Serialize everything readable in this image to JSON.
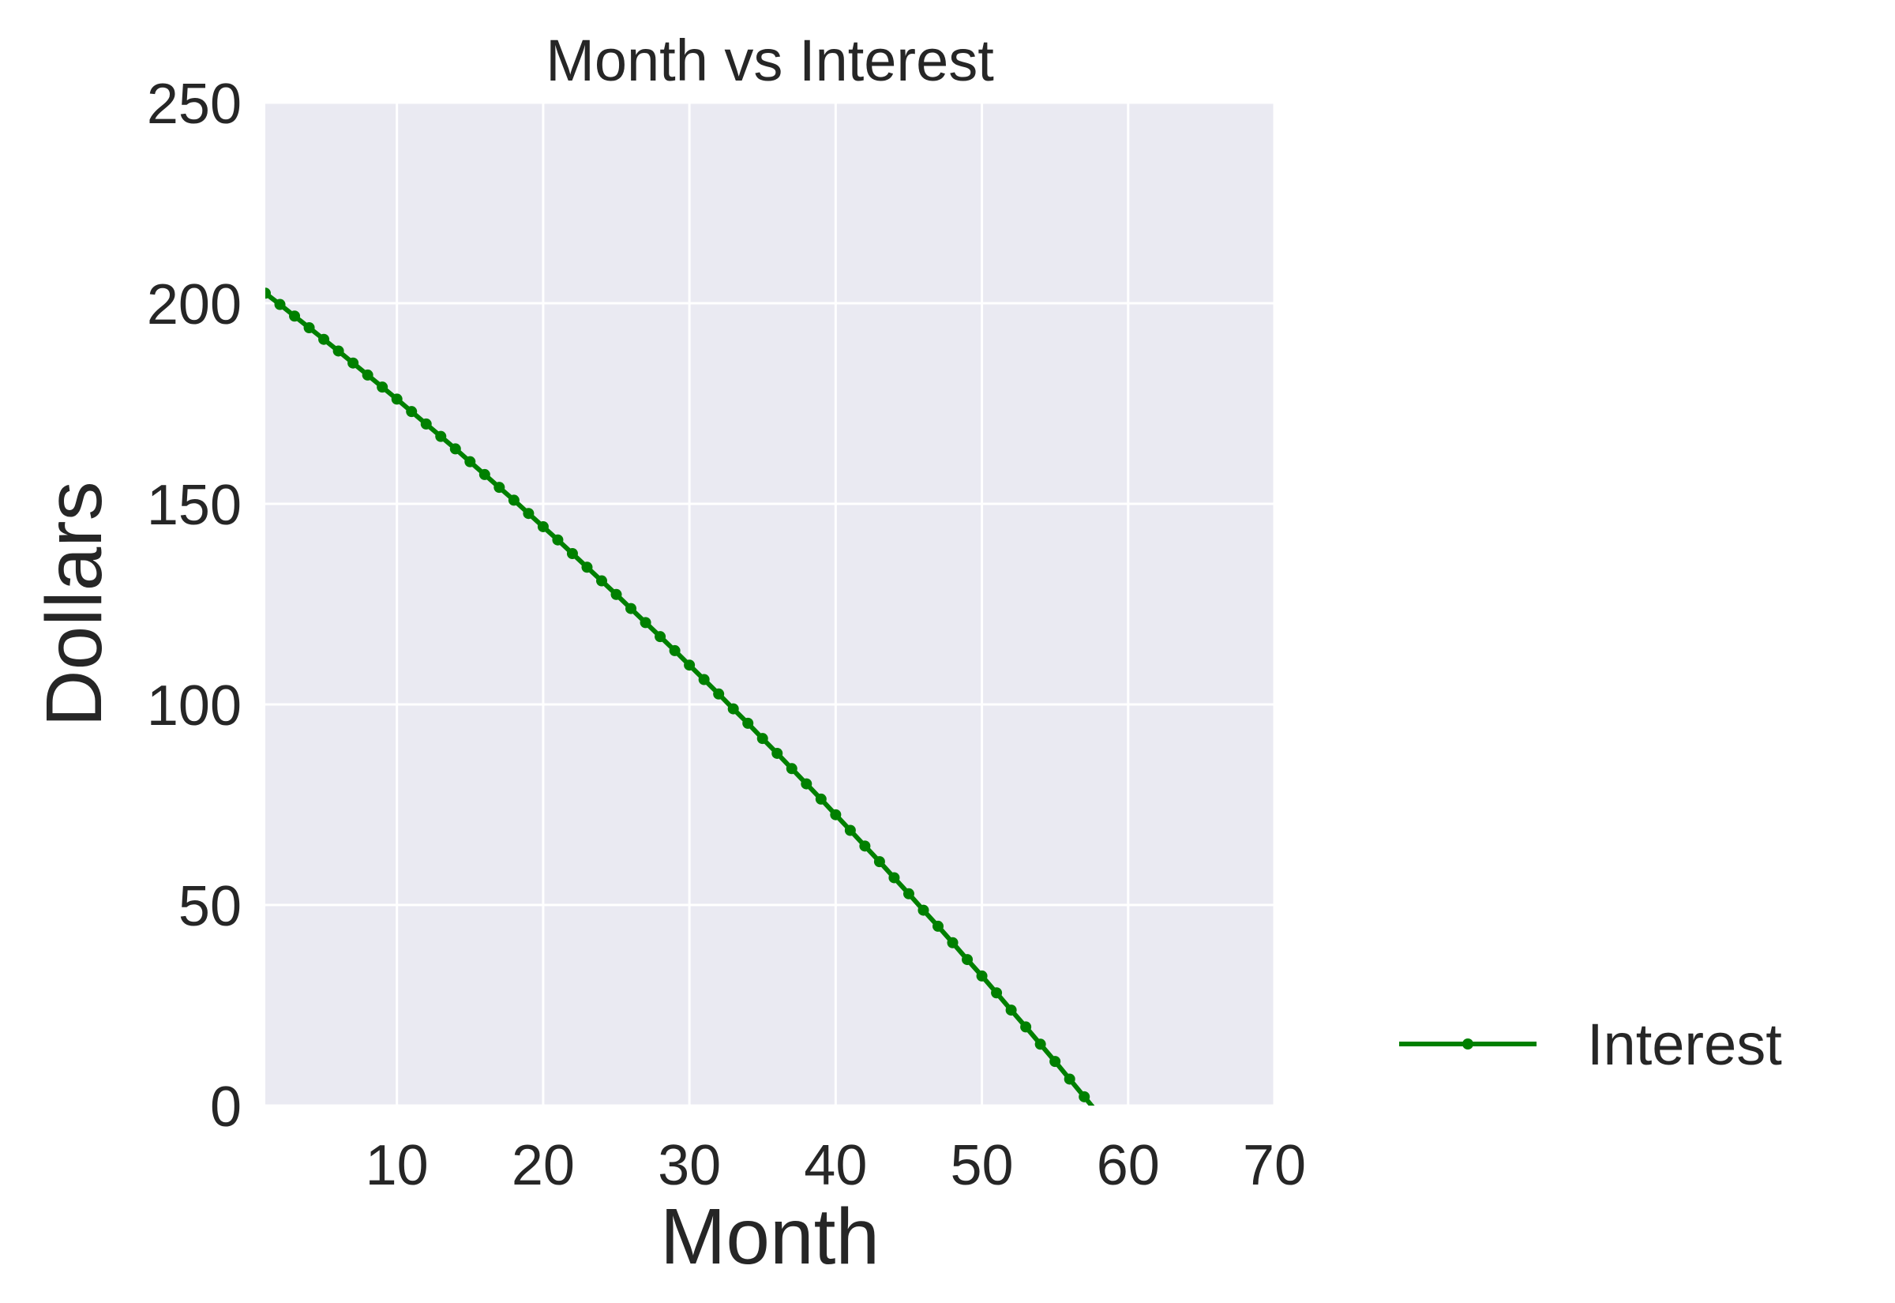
{
  "chart_data": {
    "type": "line",
    "title": "Month vs Interest",
    "xlabel": "Month",
    "ylabel": "Dollars",
    "xlim": [
      1,
      70
    ],
    "ylim": [
      0,
      250
    ],
    "xticks": [
      10,
      20,
      30,
      40,
      50,
      60,
      70
    ],
    "yticks": [
      0,
      50,
      100,
      150,
      200,
      250
    ],
    "xtick_labels": [
      "10",
      "20",
      "30",
      "40",
      "50",
      "60",
      "70"
    ],
    "ytick_labels": [
      "0",
      "50",
      "100",
      "150",
      "200",
      "250"
    ],
    "grid": true,
    "background": "#eaeaf2",
    "legend_position": "lower-right-outside",
    "series": [
      {
        "name": "Interest",
        "color": "#008000",
        "marker": "dot",
        "x": [
          1,
          2,
          3,
          4,
          5,
          6,
          7,
          8,
          9,
          10,
          11,
          12,
          13,
          14,
          15,
          16,
          17,
          18,
          19,
          20,
          21,
          22,
          23,
          24,
          25,
          26,
          27,
          28,
          29,
          30,
          31,
          32,
          33,
          34,
          35,
          36,
          37,
          38,
          39,
          40,
          41,
          42,
          43,
          44,
          45,
          46,
          47,
          48,
          49,
          50,
          51,
          52,
          53,
          54,
          55,
          56,
          57,
          58,
          59,
          60
        ],
        "values": [
          202.5,
          199.7,
          196.8,
          193.9,
          191.0,
          188.1,
          185.1,
          182.1,
          179.1,
          176.1,
          173.0,
          169.9,
          166.8,
          163.7,
          160.5,
          157.3,
          154.1,
          150.9,
          147.6,
          144.3,
          141.0,
          137.6,
          134.2,
          130.8,
          127.4,
          123.9,
          120.4,
          116.9,
          113.4,
          109.8,
          106.2,
          102.6,
          98.9,
          95.3,
          91.5,
          87.8,
          84.0,
          80.2,
          76.4,
          72.5,
          68.6,
          64.7,
          60.8,
          56.8,
          52.8,
          48.7,
          44.7,
          40.6,
          36.4,
          32.3,
          28.1,
          23.8,
          19.6,
          15.3,
          11.0,
          6.6,
          2.2,
          -2.2,
          -6.6,
          -11.0
        ]
      }
    ]
  }
}
